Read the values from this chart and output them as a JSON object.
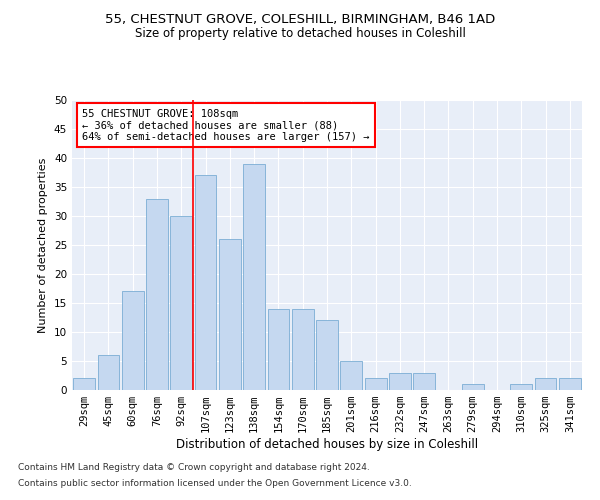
{
  "title1": "55, CHESTNUT GROVE, COLESHILL, BIRMINGHAM, B46 1AD",
  "title2": "Size of property relative to detached houses in Coleshill",
  "xlabel": "Distribution of detached houses by size in Coleshill",
  "ylabel": "Number of detached properties",
  "footnote1": "Contains HM Land Registry data © Crown copyright and database right 2024.",
  "footnote2": "Contains public sector information licensed under the Open Government Licence v3.0.",
  "bar_labels": [
    "29sqm",
    "45sqm",
    "60sqm",
    "76sqm",
    "92sqm",
    "107sqm",
    "123sqm",
    "138sqm",
    "154sqm",
    "170sqm",
    "185sqm",
    "201sqm",
    "216sqm",
    "232sqm",
    "247sqm",
    "263sqm",
    "279sqm",
    "294sqm",
    "310sqm",
    "325sqm",
    "341sqm"
  ],
  "bar_values": [
    2,
    6,
    17,
    33,
    30,
    37,
    26,
    39,
    14,
    14,
    12,
    5,
    2,
    3,
    3,
    0,
    1,
    0,
    1,
    2,
    2
  ],
  "bar_color": "#c5d8f0",
  "bar_edge_color": "#7aadd4",
  "annotation_text": "55 CHESTNUT GROVE: 108sqm\n← 36% of detached houses are smaller (88)\n64% of semi-detached houses are larger (157) →",
  "annotation_box_color": "white",
  "annotation_box_edge_color": "red",
  "vline_color": "red",
  "ylim": [
    0,
    50
  ],
  "yticks": [
    0,
    5,
    10,
    15,
    20,
    25,
    30,
    35,
    40,
    45,
    50
  ],
  "plot_bg_color": "#e8eef8",
  "title1_fontsize": 9.5,
  "title2_fontsize": 8.5,
  "xlabel_fontsize": 8.5,
  "ylabel_fontsize": 8,
  "tick_fontsize": 7.5,
  "annot_fontsize": 7.5,
  "footnote_fontsize": 6.5
}
